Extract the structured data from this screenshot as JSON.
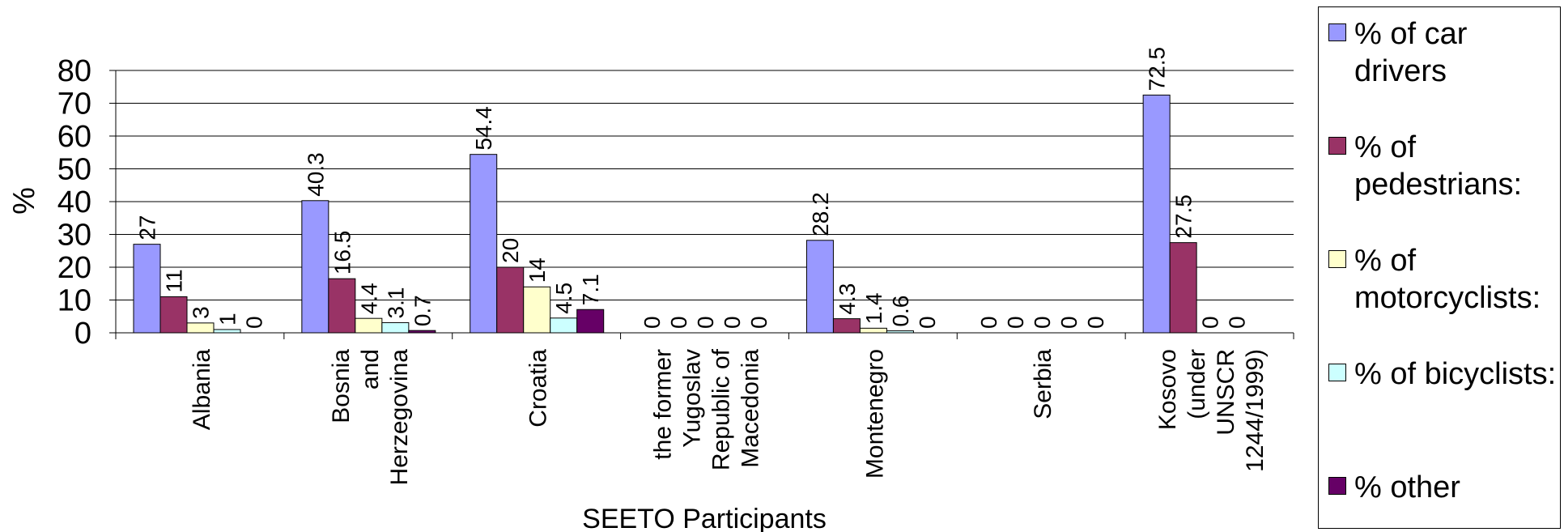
{
  "chart_data": {
    "type": "bar",
    "ylabel": "%",
    "xlabel": "SEETO Participants",
    "ylim": [
      0,
      80
    ],
    "yticks": [
      0,
      10,
      20,
      30,
      40,
      50,
      60,
      70,
      80
    ],
    "grid": true,
    "legend_position": "right",
    "categories": [
      [
        "Albania"
      ],
      [
        "Bosnia",
        "and",
        "Herzegovina"
      ],
      [
        "Croatia"
      ],
      [
        "the former",
        "Yugoslav",
        "Republic of",
        "Macedonia"
      ],
      [
        "Montenegro"
      ],
      [
        "Serbia"
      ],
      [
        "Kosovo",
        "(under",
        "UNSCR",
        "1244/1999)"
      ]
    ],
    "series": [
      {
        "name": "% of car drivers",
        "color": "#9999ff",
        "values": [
          27,
          40.3,
          54.4,
          0,
          28.2,
          0,
          72.5
        ],
        "labels": [
          "27",
          "40.3",
          "54.4",
          "0",
          "28.2",
          "0",
          "72.5"
        ]
      },
      {
        "name": "% of pedestrians:",
        "color": "#993366",
        "values": [
          11,
          16.5,
          20,
          0,
          4.3,
          0,
          27.5
        ],
        "labels": [
          "11",
          "16.5",
          "20",
          "0",
          "4.3",
          "0",
          "27.5"
        ]
      },
      {
        "name": "% of motorcyclists:",
        "color": "#ffffcc",
        "values": [
          3,
          4.4,
          14,
          0,
          1.4,
          0,
          0
        ],
        "labels": [
          "3",
          "4.4",
          "14",
          "0",
          "1.4",
          "0",
          "0"
        ]
      },
      {
        "name": "% of bicyclists:",
        "color": "#ccffff",
        "values": [
          1,
          3.1,
          4.5,
          0,
          0.6,
          0,
          0
        ],
        "labels": [
          "1",
          "3.1",
          "4.5",
          "0",
          "0.6",
          "0",
          "0"
        ]
      },
      {
        "name": "% other",
        "color": "#660066",
        "values": [
          0,
          0.7,
          7.1,
          0,
          0,
          0,
          null
        ],
        "labels": [
          "0",
          "0.7",
          "7.1",
          "0",
          "0",
          "0",
          ""
        ]
      }
    ]
  },
  "legend": {
    "items": [
      {
        "text": "% of car drivers",
        "color": "#9999ff"
      },
      {
        "text": "% of pedestrians:",
        "color": "#993366"
      },
      {
        "text": "% of motorcyclists:",
        "color": "#ffffcc"
      },
      {
        "text": "% of bicyclists:",
        "color": "#ccffff"
      },
      {
        "text": "% other",
        "color": "#660066"
      }
    ]
  }
}
